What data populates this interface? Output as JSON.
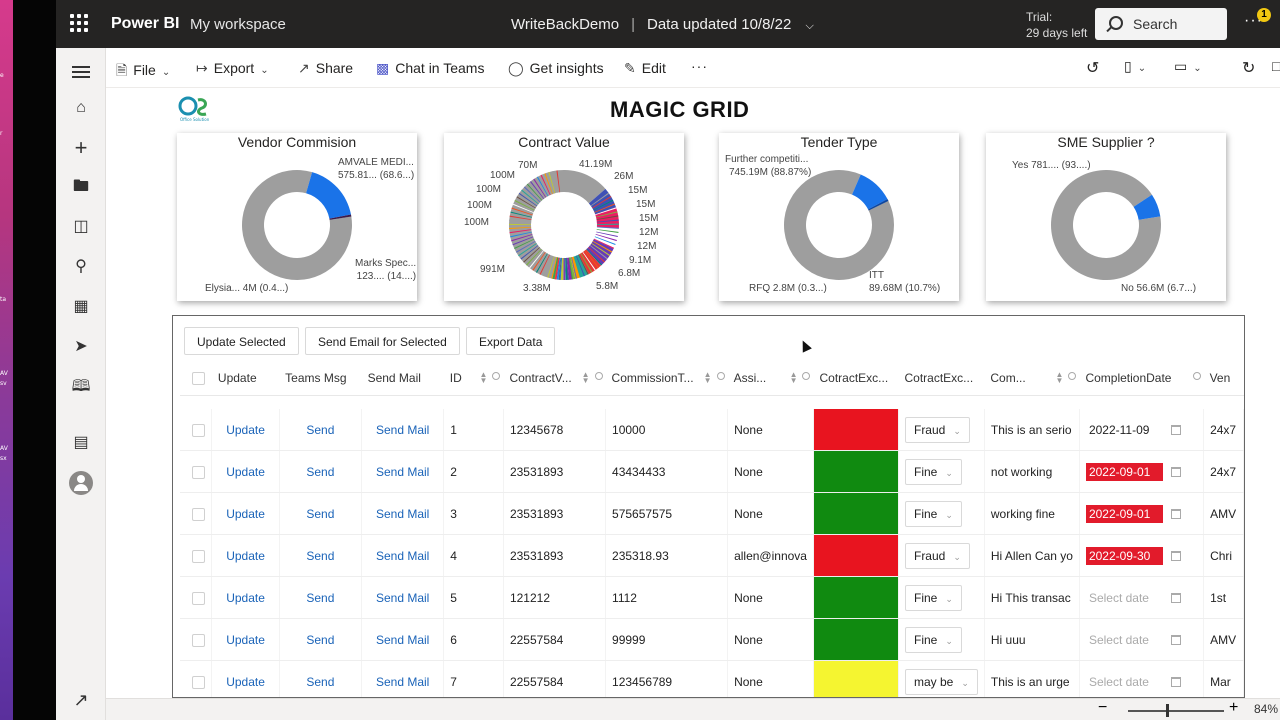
{
  "desktop_strip": {
    "labels": [
      "e",
      "r",
      "ta",
      "AV",
      "sv",
      "AV",
      "sx"
    ]
  },
  "topbar": {
    "brand": "Power BI",
    "workspace": "My workspace",
    "report_name": "WriteBackDemo",
    "sep": "|",
    "data_updated": "Data updated 10/8/22",
    "trial_line1": "Trial:",
    "trial_line2": "29 days left",
    "search_label": "Search",
    "more": "···",
    "notification_count": "1"
  },
  "toolbar": {
    "file": "File",
    "export": "Export",
    "share": "Share",
    "chat": "Chat in Teams",
    "insights": "Get insights",
    "edit": "Edit",
    "more": "···"
  },
  "report": {
    "title": "MAGIC GRID",
    "logo_caption": "Office Solution"
  },
  "cards": [
    {
      "title": "Vendor Commision",
      "labels": [
        {
          "text1": "AMVALE MEDI...",
          "text2": "575.81... (68.6...)"
        },
        {
          "text1": "Marks Spec...",
          "text2": "123.... (14....)"
        },
        {
          "text1": "Elysia... 4M (0.4...)",
          "text2": ""
        }
      ]
    },
    {
      "title": "Contract Value",
      "labels": [
        "70M",
        "41.19M",
        "100M",
        "26M",
        "100M",
        "15M",
        "100M",
        "15M",
        "100M",
        "15M",
        "12M",
        "12M",
        "9.1M",
        "991M",
        "6.8M",
        "3.38M",
        "5.8M"
      ]
    },
    {
      "title": "Tender Type",
      "labels": [
        {
          "text1": "Further competiti...",
          "text2": "745.19M (88.87%)"
        },
        {
          "text1": "RFQ 2.8M (0.3...)",
          "text2": ""
        },
        {
          "text1": "ITT",
          "text2": "89.68M (10.7%)"
        }
      ]
    },
    {
      "title": "SME Supplier ?",
      "labels": [
        {
          "text1": "Yes 781.... (93....)",
          "text2": ""
        },
        {
          "text1": "No 56.6M (6.7...)",
          "text2": ""
        }
      ]
    }
  ],
  "chart_data": [
    {
      "type": "pie",
      "title": "Vendor Commision",
      "slices": [
        {
          "label": "AMVALE MEDI...",
          "value": 575.81,
          "pct": 68.6
        },
        {
          "label": "Marks Spec...",
          "value": 123,
          "pct": 14
        },
        {
          "label": "Elysia...",
          "value": 4,
          "pct": 0.4
        }
      ]
    },
    {
      "type": "pie",
      "title": "Contract Value",
      "slices": [
        {
          "label": "991M",
          "value": 991
        },
        {
          "label": "100M",
          "value": 100
        },
        {
          "label": "100M",
          "value": 100
        },
        {
          "label": "100M",
          "value": 100
        },
        {
          "label": "100M",
          "value": 100
        },
        {
          "label": "70M",
          "value": 70
        },
        {
          "label": "41.19M",
          "value": 41.19
        },
        {
          "label": "26M",
          "value": 26
        },
        {
          "label": "15M",
          "value": 15
        },
        {
          "label": "15M",
          "value": 15
        },
        {
          "label": "15M",
          "value": 15
        },
        {
          "label": "12M",
          "value": 12
        },
        {
          "label": "12M",
          "value": 12
        },
        {
          "label": "9.1M",
          "value": 9.1
        },
        {
          "label": "6.8M",
          "value": 6.8
        },
        {
          "label": "5.8M",
          "value": 5.8
        },
        {
          "label": "3.38M",
          "value": 3.38
        }
      ]
    },
    {
      "type": "pie",
      "title": "Tender Type",
      "slices": [
        {
          "label": "Further competiti...",
          "value": 745.19,
          "pct": 88.87
        },
        {
          "label": "ITT",
          "value": 89.68,
          "pct": 10.7
        },
        {
          "label": "RFQ",
          "value": 2.8,
          "pct": 0.3
        }
      ]
    },
    {
      "type": "pie",
      "title": "SME Supplier ?",
      "slices": [
        {
          "label": "Yes",
          "value": 781,
          "pct": 93
        },
        {
          "label": "No",
          "value": 56.6,
          "pct": 6.7
        }
      ]
    }
  ],
  "grid": {
    "buttons": {
      "update_selected": "Update Selected",
      "send_email": "Send Email for Selected",
      "export": "Export Data"
    },
    "columns": [
      "Update",
      "Teams Msg",
      "Send Mail",
      "ID",
      "ContractV...",
      "CommissionT...",
      "Assi...",
      "CotractExc...",
      "CotractExc...",
      "Com...",
      "CompletionDate",
      "Ven"
    ],
    "rows": [
      {
        "update": "Update",
        "teams": "Send",
        "mail": "Send Mail",
        "id": "1",
        "contract": "12345678",
        "commission": "10000",
        "assigned": "None",
        "color": "#e8141f",
        "status": "Fraud",
        "comment": "This is an serio",
        "date": "2022-11-09",
        "date_red": false,
        "vendor": "24x7"
      },
      {
        "update": "Update",
        "teams": "Send",
        "mail": "Send Mail",
        "id": "2",
        "contract": "23531893",
        "commission": "43434433",
        "assigned": "None",
        "color": "#108a10",
        "status": "Fine",
        "comment": "not working",
        "date": "2022-09-01",
        "date_red": true,
        "vendor": "24x7"
      },
      {
        "update": "Update",
        "teams": "Send",
        "mail": "Send Mail",
        "id": "3",
        "contract": "23531893",
        "commission": "575657575",
        "assigned": "None",
        "color": "#108a10",
        "status": "Fine",
        "comment": "working fine",
        "date": "2022-09-01",
        "date_red": true,
        "vendor": "AMV"
      },
      {
        "update": "Update",
        "teams": "Send",
        "mail": "Send Mail",
        "id": "4",
        "contract": "23531893",
        "commission": "235318.93",
        "assigned": "allen@innova",
        "color": "#e8141f",
        "status": "Fraud",
        "comment": "Hi Allen Can yo",
        "date": "2022-09-30",
        "date_red": true,
        "vendor": "Chri"
      },
      {
        "update": "Update",
        "teams": "Send",
        "mail": "Send Mail",
        "id": "5",
        "contract": "121212",
        "commission": "1112",
        "assigned": "None",
        "color": "#108a10",
        "status": "Fine",
        "comment": "Hi This transac",
        "date": "Select date",
        "date_red": false,
        "vendor": "1st"
      },
      {
        "update": "Update",
        "teams": "Send",
        "mail": "Send Mail",
        "id": "6",
        "contract": "22557584",
        "commission": "99999",
        "assigned": "None",
        "color": "#108a10",
        "status": "Fine",
        "comment": "Hi uuu",
        "date": "Select date",
        "date_red": false,
        "vendor": "AMV"
      },
      {
        "update": "Update",
        "teams": "Send",
        "mail": "Send Mail",
        "id": "7",
        "contract": "22557584",
        "commission": "123456789",
        "assigned": "None",
        "color": "#f5f530",
        "status": "may be",
        "comment": "This is an urge",
        "date": "Select date",
        "date_red": false,
        "vendor": "Mar"
      }
    ]
  },
  "status": {
    "zoom": "84%"
  }
}
